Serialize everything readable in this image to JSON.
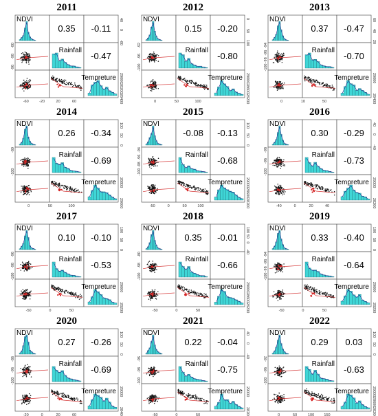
{
  "chart_data": [
    {
      "type": "scatter-matrix",
      "title": "2011",
      "variables": [
        "NDVI",
        "Rainfall",
        "Tempreture"
      ],
      "correlations": {
        "ndvi_rainfall": "0.35",
        "ndvi_temperature": "-0.11",
        "rainfall_temperature": "-0.47"
      },
      "ticks": {
        "bottom": [
          "-60",
          "-20",
          "20",
          "60"
        ],
        "top": [
          "40",
          "0",
          "-80"
        ],
        "left": [
          "-80",
          "-98",
          "-96"
        ],
        "right": [
          "29000",
          "28200",
          "28400"
        ]
      }
    },
    {
      "type": "scatter-matrix",
      "title": "2012",
      "variables": [
        "NDVI",
        "Rainfall",
        "Tempreture"
      ],
      "correlations": {
        "ndvi_rainfall": "0.15",
        "ndvi_temperature": "-0.20",
        "rainfall_temperature": "-0.80"
      },
      "ticks": {
        "bottom": [
          "0",
          "50",
          "100"
        ],
        "top": [
          "0",
          "50",
          "100"
        ],
        "left": [
          "-92",
          "-96",
          "-100"
        ],
        "right": [
          "29000",
          "28600",
          "28200"
        ]
      }
    },
    {
      "type": "scatter-matrix",
      "title": "2013",
      "variables": [
        "NDVI",
        "Rainfall",
        "Tempreture"
      ],
      "correlations": {
        "ndvi_rainfall": "0.37",
        "ndvi_temperature": "-0.47",
        "rainfall_temperature": "-0.70"
      },
      "ticks": {
        "bottom": [
          "0",
          "10",
          "50"
        ],
        "top": [
          "60",
          "40",
          "20"
        ],
        "left": [
          "-94",
          "-96",
          "-98",
          "-100"
        ],
        "right": [
          "29000",
          "28400"
        ]
      }
    },
    {
      "type": "scatter-matrix",
      "title": "2014",
      "variables": [
        "NDVI",
        "Rainfall",
        "Tempreture"
      ],
      "correlations": {
        "ndvi_rainfall": "0.26",
        "ndvi_temperature": "-0.34",
        "rainfall_temperature": "-0.69"
      },
      "ticks": {
        "bottom": [
          "0",
          "50",
          "100"
        ],
        "top": [
          "100",
          "50",
          "0"
        ],
        "left": [
          "-80",
          "-100"
        ],
        "right": [
          "28800",
          "29000"
        ]
      }
    },
    {
      "type": "scatter-matrix",
      "title": "2015",
      "variables": [
        "NDVI",
        "Rainfall",
        "Tempreture"
      ],
      "correlations": {
        "ndvi_rainfall": "-0.08",
        "ndvi_temperature": "-0.13",
        "rainfall_temperature": "-0.68"
      },
      "ticks": {
        "bottom": [
          "-50",
          "0",
          "50",
          "100"
        ],
        "top": [
          "100",
          "50",
          "0"
        ],
        "left": [
          "-94",
          "-96",
          "-98",
          "-100"
        ],
        "right": [
          "29000",
          "28600",
          "28200"
        ]
      }
    },
    {
      "type": "scatter-matrix",
      "title": "2016",
      "variables": [
        "NDVI",
        "Rainfall",
        "Tempreture"
      ],
      "correlations": {
        "ndvi_rainfall": "0.30",
        "ndvi_temperature": "-0.29",
        "rainfall_temperature": "-0.73"
      },
      "ticks": {
        "bottom": [
          "-40",
          "0",
          "20",
          "40"
        ],
        "top": [
          "40",
          "0",
          "-40"
        ],
        "left": [
          "-98",
          "-96",
          "-100"
        ],
        "right": [
          "29000",
          "28200"
        ]
      }
    },
    {
      "type": "scatter-matrix",
      "title": "2017",
      "variables": [
        "NDVI",
        "Rainfall",
        "Tempreture"
      ],
      "correlations": {
        "ndvi_rainfall": "0.10",
        "ndvi_temperature": "-0.10",
        "rainfall_temperature": "-0.53"
      },
      "ticks": {
        "bottom": [
          "-50",
          "0",
          "50"
        ],
        "top": [
          "100",
          "50",
          "0"
        ],
        "left": [
          "-96",
          "-98",
          "-100"
        ],
        "right": [
          "29000",
          "28200"
        ]
      }
    },
    {
      "type": "scatter-matrix",
      "title": "2018",
      "variables": [
        "NDVI",
        "Rainfall",
        "Tempreture"
      ],
      "correlations": {
        "ndvi_rainfall": "0.35",
        "ndvi_temperature": "-0.01",
        "rainfall_temperature": "-0.66"
      },
      "ticks": {
        "bottom": [
          "-50",
          "0",
          "50"
        ],
        "top": [
          "100",
          "50",
          "0",
          "-40"
        ],
        "left": [
          "-80",
          "-98",
          "-100"
        ],
        "right": [
          "29000",
          "28600",
          "28200"
        ]
      }
    },
    {
      "type": "scatter-matrix",
      "title": "2019",
      "variables": [
        "NDVI",
        "Rainfall",
        "Tempreture"
      ],
      "correlations": {
        "ndvi_rainfall": "0.33",
        "ndvi_temperature": "-0.40",
        "rainfall_temperature": "-0.64"
      },
      "ticks": {
        "bottom": [
          "-50",
          "0",
          "50"
        ],
        "top": [
          "100",
          "50",
          "0"
        ],
        "left": [
          "-94",
          "-96",
          "-98",
          "-100"
        ],
        "right": [
          "29000",
          "28200"
        ]
      }
    },
    {
      "type": "scatter-matrix",
      "title": "2020",
      "variables": [
        "NDVI",
        "Rainfall",
        "Tempreture"
      ],
      "correlations": {
        "ndvi_rainfall": "0.27",
        "ndvi_temperature": "-0.26",
        "rainfall_temperature": "-0.69"
      },
      "ticks": {
        "bottom": [
          "-20",
          "0",
          "20",
          "60"
        ],
        "top": [
          "100",
          "50",
          "0"
        ],
        "left": [
          "-86",
          "-96",
          "-100"
        ],
        "right": [
          "29000",
          "28400"
        ]
      }
    },
    {
      "type": "scatter-matrix",
      "title": "2021",
      "variables": [
        "NDVI",
        "Rainfall",
        "Tempreture"
      ],
      "correlations": {
        "ndvi_rainfall": "0.22",
        "ndvi_temperature": "-0.04",
        "rainfall_temperature": "-0.75"
      },
      "ticks": {
        "bottom": [
          "-50",
          "0",
          "50"
        ],
        "top": [
          "40",
          "0",
          "-40"
        ],
        "left": [
          "-96",
          "-98",
          "-100"
        ],
        "right": [
          "29000",
          "28200"
        ]
      }
    },
    {
      "type": "scatter-matrix",
      "title": "2022",
      "variables": [
        "NDVI",
        "Rainfall",
        "Tempreture"
      ],
      "correlations": {
        "ndvi_rainfall": "0.29",
        "ndvi_temperature": "0.03",
        "rainfall_temperature": "-0.63"
      },
      "ticks": {
        "bottom": [
          "0",
          "50",
          "100",
          "150"
        ],
        "top": [
          "100",
          "50",
          "0"
        ],
        "left": [
          "-92",
          "-96",
          "-100"
        ],
        "right": [
          "29000",
          "28600",
          "28200"
        ]
      }
    }
  ],
  "colors": {
    "histogram_fill": "#3fd6d6",
    "histogram_stroke": "#1f6f7a",
    "scatter_point": "#111111",
    "highlight_point": "#d42020",
    "smooth_line": "#d63a3a",
    "density_line": "#1a1a8a",
    "frame": "#555555"
  }
}
